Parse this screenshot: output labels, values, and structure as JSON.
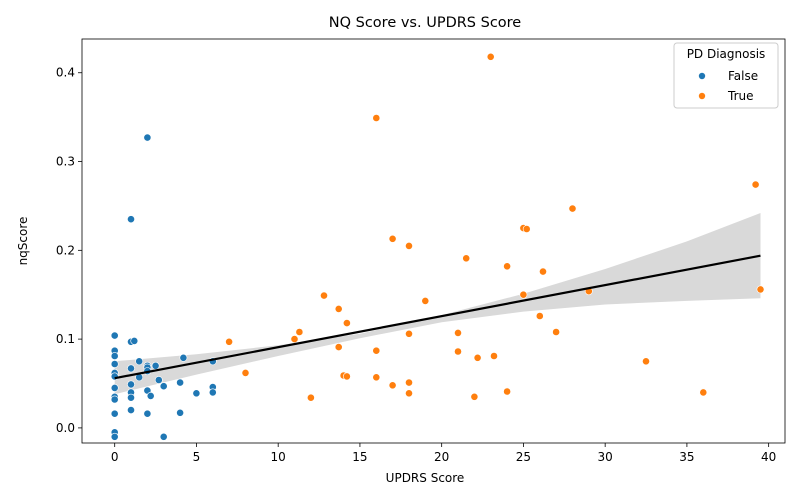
{
  "chart_data": {
    "type": "scatter",
    "title": "NQ Score vs. UPDRS Score",
    "xlabel": "UPDRS Score",
    "ylabel": "nqScore",
    "xlim": [
      -2.0,
      41.0
    ],
    "ylim": [
      -0.017,
      0.438
    ],
    "xticks": [
      0,
      5,
      10,
      15,
      20,
      25,
      30,
      35,
      40
    ],
    "yticks": [
      0.0,
      0.1,
      0.2,
      0.3,
      0.4
    ],
    "xtick_labels": [
      "0",
      "5",
      "10",
      "15",
      "20",
      "25",
      "30",
      "35",
      "40"
    ],
    "ytick_labels": [
      "0.0",
      "0.1",
      "0.2",
      "0.3",
      "0.4"
    ],
    "legend": {
      "title": "PD Diagnosis",
      "position": "top-right"
    },
    "grid": false,
    "series": [
      {
        "name": "False",
        "color": "#1f77b4",
        "points": [
          [
            0,
            0.104
          ],
          [
            0,
            0.087
          ],
          [
            0,
            0.081
          ],
          [
            0,
            0.072
          ],
          [
            0,
            0.062
          ],
          [
            0,
            0.058
          ],
          [
            0,
            0.045
          ],
          [
            0,
            0.035
          ],
          [
            0,
            0.032
          ],
          [
            0,
            0.016
          ],
          [
            0,
            -0.005
          ],
          [
            0,
            -0.01
          ],
          [
            1,
            0.235
          ],
          [
            1,
            0.097
          ],
          [
            1.2,
            0.098
          ],
          [
            1,
            0.067
          ],
          [
            1,
            0.049
          ],
          [
            1,
            0.04
          ],
          [
            1,
            0.034
          ],
          [
            1,
            0.02
          ],
          [
            1.5,
            0.075
          ],
          [
            1.5,
            0.057
          ],
          [
            2,
            0.327
          ],
          [
            2,
            0.07
          ],
          [
            2,
            0.068
          ],
          [
            2,
            0.064
          ],
          [
            2,
            0.042
          ],
          [
            2,
            0.016
          ],
          [
            2.2,
            0.036
          ],
          [
            2.5,
            0.07
          ],
          [
            2.7,
            0.054
          ],
          [
            3,
            0.047
          ],
          [
            3,
            -0.01
          ],
          [
            4,
            0.051
          ],
          [
            4,
            0.017
          ],
          [
            4.2,
            0.079
          ],
          [
            5,
            0.039
          ],
          [
            6,
            0.075
          ],
          [
            6,
            0.046
          ],
          [
            6,
            0.04
          ]
        ]
      },
      {
        "name": "True",
        "color": "#ff7f0e",
        "points": [
          [
            7,
            0.097
          ],
          [
            8,
            0.062
          ],
          [
            11,
            0.1
          ],
          [
            11.3,
            0.108
          ],
          [
            12,
            0.034
          ],
          [
            12.8,
            0.149
          ],
          [
            13.7,
            0.134
          ],
          [
            13.7,
            0.091
          ],
          [
            14,
            0.059
          ],
          [
            14.2,
            0.118
          ],
          [
            14.2,
            0.058
          ],
          [
            16,
            0.349
          ],
          [
            16,
            0.087
          ],
          [
            16,
            0.057
          ],
          [
            17,
            0.213
          ],
          [
            17,
            0.048
          ],
          [
            18,
            0.205
          ],
          [
            18,
            0.106
          ],
          [
            18,
            0.051
          ],
          [
            18,
            0.039
          ],
          [
            19,
            0.143
          ],
          [
            21,
            0.107
          ],
          [
            21,
            0.086
          ],
          [
            21.5,
            0.191
          ],
          [
            22,
            0.035
          ],
          [
            22.2,
            0.079
          ],
          [
            23,
            0.418
          ],
          [
            23.2,
            0.081
          ],
          [
            24,
            0.182
          ],
          [
            24,
            0.041
          ],
          [
            25,
            0.225
          ],
          [
            25.2,
            0.224
          ],
          [
            25,
            0.15
          ],
          [
            26,
            0.126
          ],
          [
            26.2,
            0.176
          ],
          [
            27,
            0.108
          ],
          [
            28,
            0.247
          ],
          [
            29,
            0.154
          ],
          [
            32.5,
            0.075
          ],
          [
            36,
            0.04
          ],
          [
            39.2,
            0.274
          ],
          [
            39.5,
            0.156
          ]
        ]
      }
    ],
    "regression": {
      "color": "#000000",
      "x": [
        0,
        39.5
      ],
      "y": [
        0.056,
        0.194
      ],
      "band": {
        "color": "#d9d9d9",
        "x": [
          0,
          5,
          10,
          15,
          20,
          25,
          30,
          35,
          39.5
        ],
        "lower": [
          0.038,
          0.06,
          0.081,
          0.101,
          0.119,
          0.131,
          0.139,
          0.143,
          0.146
        ],
        "upper": [
          0.075,
          0.083,
          0.093,
          0.106,
          0.127,
          0.151,
          0.179,
          0.21,
          0.242
        ]
      }
    }
  }
}
